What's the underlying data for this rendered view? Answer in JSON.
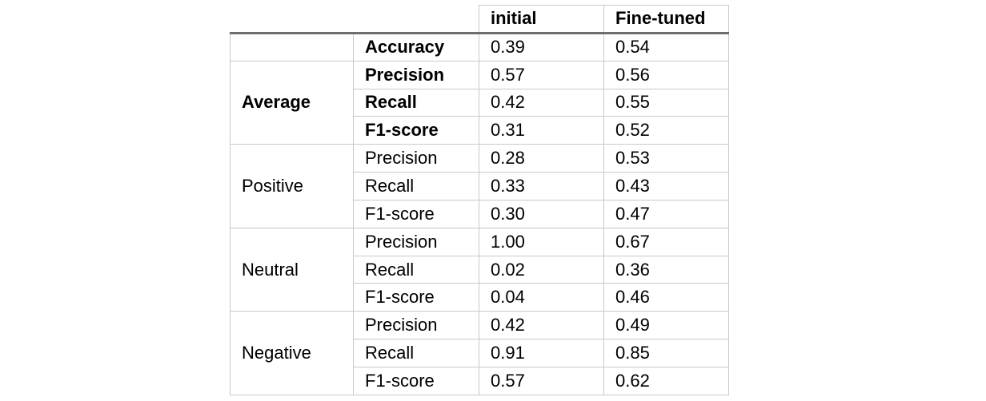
{
  "table": {
    "headers": [
      "",
      "",
      "initial",
      "Fine-tuned"
    ],
    "accuracy": {
      "metric": "Accuracy",
      "initial": "0.39",
      "fine_tuned": "0.54"
    },
    "groups": [
      {
        "label": "Average",
        "rows": [
          {
            "metric": "Precision",
            "initial": "0.57",
            "fine_tuned": "0.56"
          },
          {
            "metric": "Recall",
            "initial": "0.42",
            "fine_tuned": "0.55"
          },
          {
            "metric": "F1-score",
            "initial": "0.31",
            "fine_tuned": "0.52"
          }
        ]
      },
      {
        "label": "Positive",
        "rows": [
          {
            "metric": "Precision",
            "initial": "0.28",
            "fine_tuned": "0.53"
          },
          {
            "metric": "Recall",
            "initial": "0.33",
            "fine_tuned": "0.43"
          },
          {
            "metric": "F1-score",
            "initial": "0.30",
            "fine_tuned": "0.47"
          }
        ]
      },
      {
        "label": "Neutral",
        "rows": [
          {
            "metric": "Precision",
            "initial": "1.00",
            "fine_tuned": "0.67"
          },
          {
            "metric": "Recall",
            "initial": "0.02",
            "fine_tuned": "0.36"
          },
          {
            "metric": "F1-score",
            "initial": "0.04",
            "fine_tuned": "0.46"
          }
        ]
      },
      {
        "label": "Negative",
        "rows": [
          {
            "metric": "Precision",
            "initial": "0.42",
            "fine_tuned": "0.49"
          },
          {
            "metric": "Recall",
            "initial": "0.91",
            "fine_tuned": "0.85"
          },
          {
            "metric": "F1-score",
            "initial": "0.57",
            "fine_tuned": "0.62"
          }
        ]
      }
    ]
  }
}
